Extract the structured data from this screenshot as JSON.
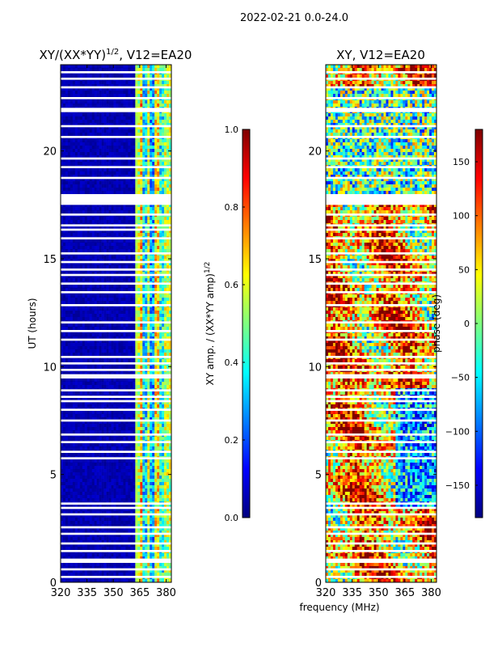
{
  "figure": {
    "suptitle": "2022-02-21 0.0-24.0",
    "xlabel_shared": "frequency (MHz)"
  },
  "colors": {
    "jet": [
      "#00007f",
      "#0000ff",
      "#007fff",
      "#00ffff",
      "#7fff7f",
      "#ffff00",
      "#ff7f00",
      "#ff0000",
      "#7f0000"
    ],
    "gap": "#ffffff",
    "frame": "#000000"
  },
  "chart_data": [
    {
      "type": "heatmap",
      "title_main": "XY/(XX*YY)",
      "title_exp": "1/2",
      "title_tail": ", V12=EA20",
      "xlabel": "",
      "ylabel": "UT (hours)",
      "xlim": [
        320,
        383
      ],
      "ylim": [
        0,
        24
      ],
      "xticks": [
        320,
        335,
        350,
        365,
        380
      ],
      "yticks": [
        0,
        5,
        10,
        15,
        20
      ],
      "colorbar": {
        "label_main": "XY amp. / (XX*YY amp)",
        "label_exp": "1/2",
        "range": [
          0.0,
          1.0
        ],
        "ticks": [
          "0.0",
          "0.2",
          "0.4",
          "0.6",
          "0.8",
          "1.0"
        ]
      },
      "gaps_ut": [
        [
          0.2,
          0.3
        ],
        [
          0.55,
          0.65
        ],
        [
          0.9,
          1.1
        ],
        [
          1.4,
          1.5
        ],
        [
          1.75,
          1.85
        ],
        [
          2.2,
          2.3
        ],
        [
          2.5,
          2.6
        ],
        [
          3.1,
          3.2
        ],
        [
          3.4,
          3.5
        ],
        [
          3.6,
          3.7
        ],
        [
          5.7,
          5.8
        ],
        [
          6.0,
          6.1
        ],
        [
          6.45,
          6.55
        ],
        [
          6.8,
          6.9
        ],
        [
          7.45,
          7.55
        ],
        [
          7.95,
          8.05
        ],
        [
          8.35,
          8.45
        ],
        [
          8.55,
          8.65
        ],
        [
          8.85,
          8.95
        ],
        [
          9.45,
          9.65
        ],
        [
          9.8,
          9.9
        ],
        [
          10.1,
          10.2
        ],
        [
          10.4,
          10.5
        ],
        [
          11.2,
          11.3
        ],
        [
          11.6,
          11.7
        ],
        [
          12.0,
          12.1
        ],
        [
          12.8,
          12.9
        ],
        [
          13.4,
          13.5
        ],
        [
          13.8,
          13.9
        ],
        [
          14.2,
          14.3
        ],
        [
          14.45,
          14.55
        ],
        [
          14.8,
          14.9
        ],
        [
          15.2,
          15.3
        ],
        [
          15.9,
          16.0
        ],
        [
          16.3,
          16.4
        ],
        [
          16.5,
          16.6
        ],
        [
          17.0,
          17.1
        ],
        [
          17.5,
          18.0
        ],
        [
          18.7,
          18.8
        ],
        [
          19.2,
          19.3
        ],
        [
          19.6,
          19.7
        ],
        [
          20.6,
          20.7
        ],
        [
          21.1,
          21.2
        ],
        [
          21.8,
          22.0
        ],
        [
          22.4,
          22.5
        ],
        [
          22.9,
          23.0
        ],
        [
          23.3,
          23.4
        ],
        [
          23.6,
          23.7
        ]
      ],
      "bright_band_mhz": [
        364,
        382
      ],
      "value_bands": [
        {
          "mhz": [
            320,
            363
          ],
          "level": 0.05
        },
        {
          "mhz": [
            363,
            365
          ],
          "level": 0.55
        },
        {
          "mhz": [
            365,
            367
          ],
          "level": 0.7
        },
        {
          "mhz": [
            367,
            369
          ],
          "level": 0.35
        },
        {
          "mhz": [
            369,
            371
          ],
          "level": 0.6
        },
        {
          "mhz": [
            371,
            374
          ],
          "level": 0.3
        },
        {
          "mhz": [
            374,
            376
          ],
          "level": 0.65
        },
        {
          "mhz": [
            376,
            379
          ],
          "level": 0.4
        },
        {
          "mhz": [
            379,
            383
          ],
          "level": 0.55
        }
      ]
    },
    {
      "type": "heatmap",
      "title": "XY, V12=EA20",
      "xlabel": "frequency (MHz)",
      "ylabel": "",
      "xlim": [
        320,
        383
      ],
      "ylim": [
        0,
        24
      ],
      "xticks": [
        320,
        335,
        350,
        365,
        380
      ],
      "yticks": [
        0,
        5,
        10,
        15,
        20
      ],
      "colorbar": {
        "label": "phase (deg)",
        "range": [
          -180,
          180
        ],
        "ticks": [
          "−150",
          "−100",
          "−50",
          "0",
          "50",
          "100",
          "150"
        ],
        "tick_values": [
          -150,
          -100,
          -50,
          0,
          50,
          100,
          150
        ]
      },
      "gaps_ut": [
        [
          0.2,
          0.3
        ],
        [
          0.55,
          0.65
        ],
        [
          0.9,
          1.1
        ],
        [
          1.4,
          1.5
        ],
        [
          1.75,
          1.85
        ],
        [
          2.2,
          2.3
        ],
        [
          2.5,
          2.6
        ],
        [
          3.1,
          3.2
        ],
        [
          3.4,
          3.5
        ],
        [
          3.6,
          3.7
        ],
        [
          5.7,
          5.8
        ],
        [
          6.0,
          6.1
        ],
        [
          6.45,
          6.55
        ],
        [
          6.8,
          6.9
        ],
        [
          7.45,
          7.55
        ],
        [
          7.95,
          8.05
        ],
        [
          8.35,
          8.45
        ],
        [
          8.55,
          8.65
        ],
        [
          8.85,
          8.95
        ],
        [
          9.45,
          9.65
        ],
        [
          9.8,
          9.9
        ],
        [
          10.1,
          10.2
        ],
        [
          10.4,
          10.5
        ],
        [
          11.2,
          11.3
        ],
        [
          11.6,
          11.7
        ],
        [
          12.0,
          12.1
        ],
        [
          12.8,
          12.9
        ],
        [
          13.4,
          13.5
        ],
        [
          13.8,
          13.9
        ],
        [
          14.2,
          14.3
        ],
        [
          14.45,
          14.55
        ],
        [
          14.8,
          14.9
        ],
        [
          15.2,
          15.3
        ],
        [
          15.9,
          16.0
        ],
        [
          16.3,
          16.4
        ],
        [
          16.5,
          16.6
        ],
        [
          17.0,
          17.1
        ],
        [
          17.5,
          18.0
        ],
        [
          18.7,
          18.8
        ],
        [
          19.2,
          19.3
        ],
        [
          19.6,
          19.7
        ],
        [
          20.6,
          20.7
        ],
        [
          21.1,
          21.2
        ],
        [
          21.8,
          22.0
        ],
        [
          22.4,
          22.5
        ],
        [
          22.9,
          23.0
        ],
        [
          23.3,
          23.4
        ],
        [
          23.6,
          23.7
        ]
      ]
    }
  ]
}
